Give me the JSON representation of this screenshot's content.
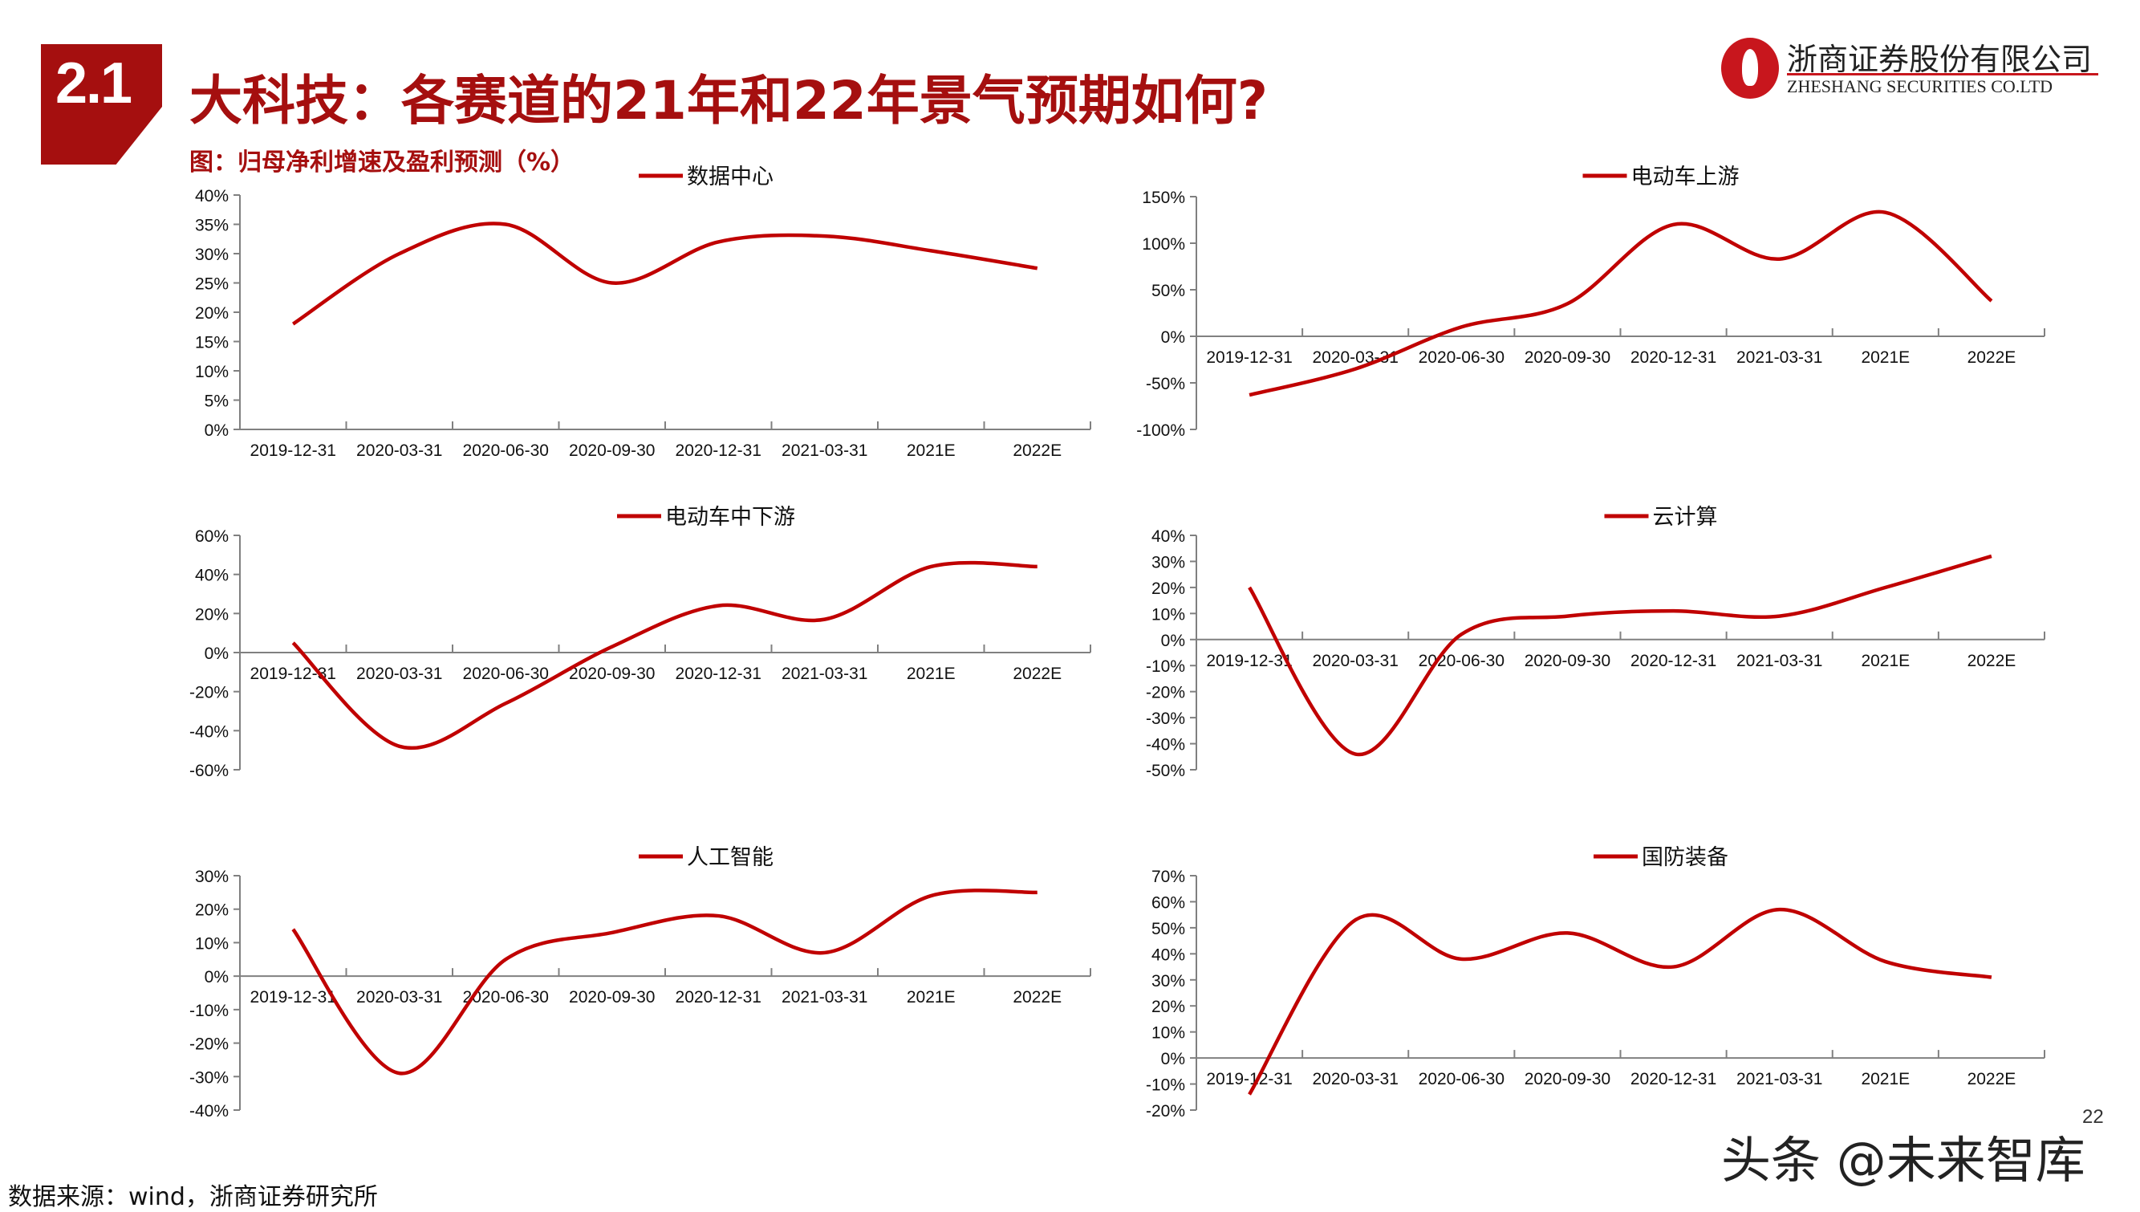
{
  "header": {
    "section_number": "2.1",
    "title": "大科技：各赛道的21年和22年景气预期如何?",
    "subtitle": "图：归母净利增速及盈利预测（%）"
  },
  "logo": {
    "name_cn": "浙商证券股份有限公司",
    "name_en": "ZHESHANG SECURITIES CO.LTD"
  },
  "footer": {
    "source": "数据来源：wind，浙商证券研究所",
    "watermark": "头条 @未来智库",
    "page_number": "22"
  },
  "colors": {
    "brand": "#a50f0f",
    "line": "#c00000",
    "axis": "#808080"
  },
  "chart_data": [
    {
      "type": "line",
      "legend": "数据中心",
      "legend_position": "top",
      "categories": [
        "2019-12-31",
        "2020-03-31",
        "2020-06-30",
        "2020-09-30",
        "2020-12-31",
        "2021-03-31",
        "2021E",
        "2022E"
      ],
      "series": [
        {
          "name": "数据中心",
          "values": [
            18,
            30,
            35,
            25,
            32,
            33,
            30.5,
            27.5
          ]
        }
      ],
      "ylim": [
        0,
        40
      ],
      "yticks": [
        0,
        5,
        10,
        15,
        20,
        25,
        30,
        35,
        40
      ],
      "ytick_labels": [
        "0%",
        "5%",
        "10%",
        "15%",
        "20%",
        "25%",
        "30%",
        "35%",
        "40%"
      ],
      "smooth": true
    },
    {
      "type": "line",
      "legend": "电动车上游",
      "legend_position": "top",
      "categories": [
        "2019-12-31",
        "2020-03-31",
        "2020-06-30",
        "2020-09-30",
        "2020-12-31",
        "2021-03-31",
        "2021E",
        "2022E"
      ],
      "series": [
        {
          "name": "电动车上游",
          "values": [
            -63,
            -35,
            10,
            35,
            120,
            83,
            133,
            38
          ]
        }
      ],
      "ylim": [
        -100,
        150
      ],
      "yticks": [
        -100,
        -50,
        0,
        50,
        100,
        150
      ],
      "ytick_labels": [
        "-100%",
        "-50%",
        "0%",
        "50%",
        "100%",
        "150%"
      ],
      "smooth": true
    },
    {
      "type": "line",
      "legend": "电动车中下游",
      "legend_position": "top",
      "categories": [
        "2019-12-31",
        "2020-03-31",
        "2020-06-30",
        "2020-09-30",
        "2020-12-31",
        "2021-03-31",
        "2021E",
        "2022E"
      ],
      "series": [
        {
          "name": "电动车中下游",
          "values": [
            5,
            -48,
            -26,
            3,
            24,
            17,
            44,
            44
          ]
        }
      ],
      "ylim": [
        -60,
        60
      ],
      "yticks": [
        -60,
        -40,
        -20,
        0,
        20,
        40,
        60
      ],
      "ytick_labels": [
        "-60%",
        "-40%",
        "-20%",
        "0%",
        "20%",
        "40%",
        "60%"
      ],
      "smooth": true
    },
    {
      "type": "line",
      "legend": "云计算",
      "legend_position": "top",
      "categories": [
        "2019-12-31",
        "2020-03-31",
        "2020-06-30",
        "2020-09-30",
        "2020-12-31",
        "2021-03-31",
        "2021E",
        "2022E"
      ],
      "series": [
        {
          "name": "云计算",
          "values": [
            20,
            -44,
            2,
            9,
            11,
            9,
            20,
            32
          ]
        }
      ],
      "ylim": [
        -50,
        40
      ],
      "yticks": [
        -50,
        -40,
        -30,
        -20,
        -10,
        0,
        10,
        20,
        30,
        40
      ],
      "ytick_labels": [
        "-50%",
        "-40%",
        "-30%",
        "-20%",
        "-10%",
        "0%",
        "10%",
        "20%",
        "30%",
        "40%"
      ],
      "smooth": true
    },
    {
      "type": "line",
      "legend": "人工智能",
      "legend_position": "top",
      "categories": [
        "2019-12-31",
        "2020-03-31",
        "2020-06-30",
        "2020-09-30",
        "2020-12-31",
        "2021-03-31",
        "2021E",
        "2022E"
      ],
      "series": [
        {
          "name": "人工智能",
          "values": [
            14,
            -29,
            5,
            13,
            18,
            7,
            24,
            25
          ]
        }
      ],
      "ylim": [
        -40,
        30
      ],
      "yticks": [
        -40,
        -30,
        -20,
        -10,
        0,
        10,
        20,
        30
      ],
      "ytick_labels": [
        "-40%",
        "-30%",
        "-20%",
        "-10%",
        "0%",
        "10%",
        "20%",
        "30%"
      ],
      "smooth": true
    },
    {
      "type": "line",
      "legend": "国防装备",
      "legend_position": "top",
      "categories": [
        "2019-12-31",
        "2020-03-31",
        "2020-06-30",
        "2020-09-30",
        "2020-12-31",
        "2021-03-31",
        "2021E",
        "2022E"
      ],
      "series": [
        {
          "name": "国防装备",
          "values": [
            -14,
            53,
            38,
            48,
            35,
            57,
            37,
            31
          ]
        }
      ],
      "ylim": [
        -20,
        70
      ],
      "yticks": [
        -20,
        -10,
        0,
        10,
        20,
        30,
        40,
        50,
        60,
        70
      ],
      "ytick_labels": [
        "-20%",
        "-10%",
        "0%",
        "10%",
        "20%",
        "30%",
        "40%",
        "50%",
        "60%",
        "70%"
      ],
      "smooth": true
    }
  ]
}
